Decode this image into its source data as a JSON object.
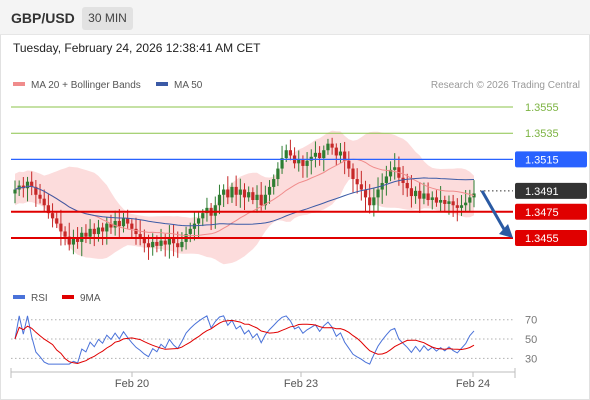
{
  "header": {
    "symbol": "GBP/USD",
    "timeframe": "30 MIN"
  },
  "datetime": "Tuesday, February 24, 2026 12:38:41 AM CET",
  "legend": {
    "ma20_label": "MA 20 + Bollinger Bands",
    "ma50_label": "MA 50",
    "credit": "Research © 2026 Trading Central"
  },
  "rsi_legend": {
    "rsi_label": "RSI",
    "ma_label": "9MA"
  },
  "colors": {
    "bull": "#2e7d32",
    "bear": "#c62828",
    "ma20": "#f08c8c",
    "band_fill": "#fbd0d0",
    "ma50": "#3b5aa6",
    "support": "#e00000",
    "pivot": "#333333",
    "resistance_blue": "#2962ff",
    "resistance_green": "#8bc34a",
    "rsi_line": "#4a72d9",
    "rsi_ma": "#e00000",
    "arrow": "#2a5aa3"
  },
  "chart_data": {
    "type": "candlestick",
    "symbol": "GBP/USD",
    "ylim": [
      1.3443,
      1.3565
    ],
    "levels": [
      {
        "value": 1.3555,
        "label": "1.3555",
        "role": "resistance"
      },
      {
        "value": 1.3535,
        "label": "1.3535",
        "role": "resistance"
      },
      {
        "value": 1.3515,
        "label": "1.3515",
        "role": "resistance"
      },
      {
        "value": 1.3491,
        "label": "1.3491",
        "role": "pivot"
      },
      {
        "value": 1.3475,
        "label": "1.3475",
        "role": "support"
      },
      {
        "value": 1.3455,
        "label": "1.3455",
        "role": "support"
      }
    ],
    "x_ticks": [
      "Feb 20",
      "Feb 23",
      "Feb 24"
    ],
    "forecast_arrow": {
      "from": 1.3491,
      "to": 1.3455
    },
    "close_path": [
      1.3492,
      1.3495,
      1.3493,
      1.3498,
      1.3494,
      1.3488,
      1.3485,
      1.348,
      1.3474,
      1.347,
      1.3466,
      1.346,
      1.3456,
      1.345,
      1.3455,
      1.3452,
      1.3459,
      1.3456,
      1.3462,
      1.3458,
      1.3463,
      1.346,
      1.3466,
      1.3463,
      1.3468,
      1.3464,
      1.347,
      1.3466,
      1.3462,
      1.3458,
      1.3455,
      1.3451,
      1.3448,
      1.3452,
      1.3449,
      1.3453,
      1.345,
      1.3455,
      1.3451,
      1.3448,
      1.3452,
      1.3458,
      1.3462,
      1.3466,
      1.347,
      1.3474,
      1.3478,
      1.3472,
      1.348,
      1.3488,
      1.3492,
      1.3486,
      1.3494,
      1.3488,
      1.3492,
      1.3486,
      1.349,
      1.3484,
      1.3488,
      1.348,
      1.3488,
      1.3494,
      1.35,
      1.3508,
      1.3516,
      1.3522,
      1.3518,
      1.3512,
      1.3515,
      1.351,
      1.3514,
      1.3517,
      1.352,
      1.3516,
      1.3522,
      1.3527,
      1.3524,
      1.3518,
      1.3521,
      1.3514,
      1.3508,
      1.35,
      1.3496,
      1.3492,
      1.3486,
      1.348,
      1.3486,
      1.3492,
      1.3497,
      1.3502,
      1.3507,
      1.3509,
      1.3501,
      1.3497,
      1.3493,
      1.3487,
      1.3491,
      1.3485,
      1.3489,
      1.3484,
      1.3486,
      1.3482,
      1.3484,
      1.3481,
      1.3483,
      1.348,
      1.3478,
      1.348,
      1.3482,
      1.3486,
      1.3489
    ],
    "rsi": {
      "levels": [
        70,
        50,
        30
      ],
      "ylim": [
        20,
        78
      ]
    }
  }
}
